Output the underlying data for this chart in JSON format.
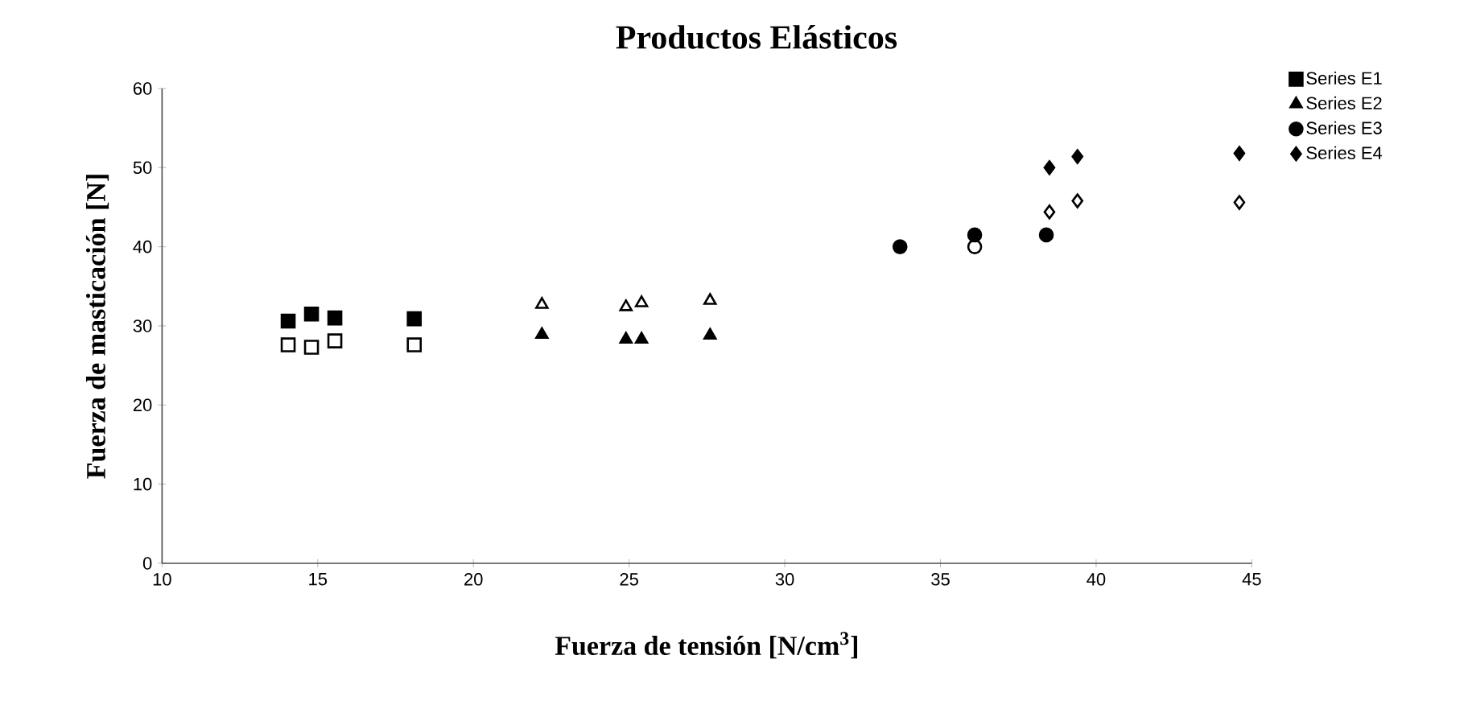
{
  "chart_data": {
    "type": "scatter",
    "title": "Productos Elásticos",
    "xlabel": "Fuerza de tensión [N/cm$^{3}$]",
    "ylabel": "Fuerza de masticación [N]",
    "xlim": [
      10,
      45
    ],
    "xticks": [
      10,
      15,
      20,
      25,
      30,
      35,
      40,
      45
    ],
    "ylim": [
      0,
      60
    ],
    "yticks": [
      0,
      10,
      20,
      30,
      40,
      50,
      60
    ],
    "grid": false,
    "legend": "right",
    "series": [
      {
        "name": "Series E1",
        "color": "#000000",
        "marker": "square",
        "x": [
          14.05,
          14.8,
          15.55,
          18.1
        ],
        "values": [
          30.6,
          31.5,
          31.0,
          30.9
        ]
      },
      {
        "name": "Series E2",
        "color": "#000000",
        "marker": "triangle",
        "x": [
          22.2,
          24.9,
          25.4,
          27.6
        ],
        "values": [
          28.9,
          28.3,
          28.3,
          28.8
        ]
      },
      {
        "name": "Series E3",
        "color": "#000000",
        "marker": "circle",
        "x": [
          33.7,
          36.1,
          38.4
        ],
        "values": [
          40.0,
          41.5,
          41.5
        ]
      },
      {
        "name": "Series E4",
        "color": "#000000",
        "marker": "diamond",
        "x": [
          38.5,
          39.4,
          44.6
        ],
        "values": [
          50.0,
          51.4,
          51.8
        ]
      },
      {
        "color": "#000000",
        "marker": "square-open",
        "x": [
          14.05,
          14.8,
          15.55,
          18.1
        ],
        "values": [
          27.6,
          27.3,
          28.1,
          27.6
        ]
      },
      {
        "color": "#000000",
        "marker": "triangle-open",
        "x": [
          22.2,
          24.9,
          25.4,
          27.6
        ],
        "values": [
          32.7,
          32.4,
          32.9,
          33.2
        ]
      },
      {
        "color": "#000000",
        "marker": "circle-open",
        "x": [
          36.1
        ],
        "values": [
          40.0
        ]
      },
      {
        "color": "#000000",
        "marker": "diamond-open",
        "x": [
          38.5,
          39.4,
          44.6
        ],
        "values": [
          44.4,
          45.8,
          45.6
        ]
      }
    ]
  }
}
